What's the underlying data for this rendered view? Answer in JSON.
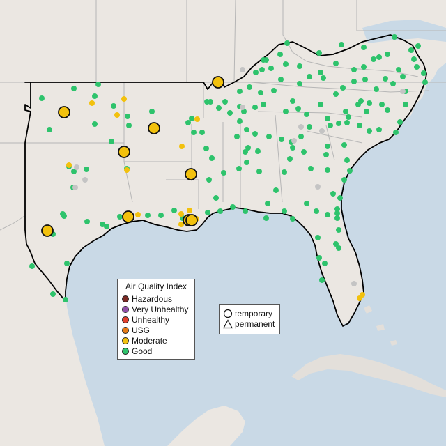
{
  "map": {
    "land_color": "#ebe7e2",
    "water_color": "#c9d9e6",
    "border_color": "#b6b6b6",
    "highlight_border_color": "#000000"
  },
  "aqi_legend": {
    "title": "Air Quality Index",
    "items": [
      {
        "label": "Hazardous",
        "color": "#7b2a24"
      },
      {
        "label": "Very Unhealthy",
        "color": "#8e4fa6"
      },
      {
        "label": "Unhealthy",
        "color": "#e2402d"
      },
      {
        "label": "USG",
        "color": "#e77b16"
      },
      {
        "label": "Moderate",
        "color": "#f2c10d"
      },
      {
        "label": "Good",
        "color": "#2ec36c"
      }
    ]
  },
  "type_legend": {
    "items": [
      {
        "label": "temporary",
        "symbol": "circle"
      },
      {
        "label": "permanent",
        "symbol": "triangle"
      }
    ]
  },
  "colors": {
    "good": "#2ec36c",
    "moderate": "#f2c10d",
    "no_data": "#c4c4c4"
  }
}
